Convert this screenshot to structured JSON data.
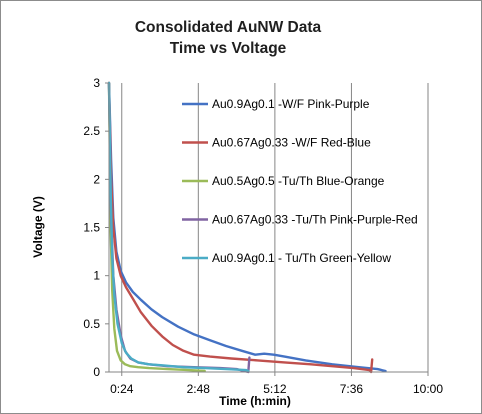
{
  "chart_data": {
    "type": "line",
    "title": "Consolidated AuNW Data",
    "subtitle": "Time vs Voltage",
    "xlabel": "Time (h:min)",
    "ylabel": "Voltage (V)",
    "x_unit": "minutes",
    "xlim": [
      0,
      600
    ],
    "ylim": [
      0,
      3
    ],
    "x_ticks": [
      {
        "value": 24,
        "label": "0:24"
      },
      {
        "value": 168,
        "label": "2:48"
      },
      {
        "value": 312,
        "label": "5:12"
      },
      {
        "value": 456,
        "label": "7:36"
      },
      {
        "value": 600,
        "label": "10:00"
      }
    ],
    "y_ticks": [
      {
        "value": 0,
        "label": "0"
      },
      {
        "value": 0.5,
        "label": "0.5"
      },
      {
        "value": 1,
        "label": "1"
      },
      {
        "value": 1.5,
        "label": "1.5"
      },
      {
        "value": 2,
        "label": "2"
      },
      {
        "value": 2.5,
        "label": "2.5"
      },
      {
        "value": 3,
        "label": "3"
      }
    ],
    "grid": {
      "vertical": true,
      "horizontal": false
    },
    "legend_position": "top-right",
    "series": [
      {
        "name": "Au0.9Ag0.1 -W/F Pink-Purple",
        "color": "#4472c4",
        "x": [
          0,
          4,
          8,
          14,
          22,
          32,
          45,
          60,
          80,
          100,
          130,
          160,
          190,
          220,
          250,
          275,
          292,
          310,
          330,
          370,
          420,
          470,
          505,
          520
        ],
        "y": [
          3.0,
          2.2,
          1.6,
          1.25,
          1.05,
          0.93,
          0.83,
          0.75,
          0.65,
          0.57,
          0.47,
          0.39,
          0.33,
          0.27,
          0.22,
          0.18,
          0.19,
          0.18,
          0.16,
          0.12,
          0.08,
          0.05,
          0.03,
          0.01
        ]
      },
      {
        "name": "Au0.67Ag0.33 -W/F Red-Blue",
        "color": "#c0504d",
        "x": [
          0,
          4,
          8,
          14,
          22,
          32,
          45,
          60,
          80,
          100,
          120,
          140,
          160,
          190,
          230,
          280,
          330,
          380,
          420,
          460,
          490,
          493,
          494,
          495
        ],
        "y": [
          3.0,
          2.0,
          1.5,
          1.18,
          1.0,
          0.88,
          0.76,
          0.62,
          0.48,
          0.37,
          0.28,
          0.22,
          0.18,
          0.16,
          0.14,
          0.12,
          0.1,
          0.08,
          0.06,
          0.04,
          0.02,
          0.0,
          0.06,
          0.13
        ]
      },
      {
        "name": "Au0.5Ag0.5 -Tu/Th Blue-Orange",
        "color": "#9bbb59",
        "x": [
          0,
          3,
          6,
          10,
          15,
          22,
          30,
          40,
          55,
          75,
          110,
          150,
          180
        ],
        "y": [
          3.0,
          1.5,
          0.85,
          0.45,
          0.22,
          0.12,
          0.08,
          0.06,
          0.05,
          0.04,
          0.03,
          0.02,
          0.01
        ]
      },
      {
        "name": "Au0.67Ag0.33 -Tu/Th Pink-Purple-Red",
        "color": "#8064a2",
        "x": [
          0,
          4,
          8,
          14,
          22,
          30,
          40,
          55,
          75,
          110,
          160,
          210,
          240,
          262,
          263,
          264
        ],
        "y": [
          3.0,
          1.6,
          1.0,
          0.65,
          0.38,
          0.22,
          0.14,
          0.1,
          0.08,
          0.06,
          0.05,
          0.04,
          0.03,
          0.0,
          0.07,
          0.15
        ]
      },
      {
        "name": "Au0.9Ag0.1 - Tu/Th Green-Yellow",
        "color": "#4bacc6",
        "x": [
          0,
          3,
          6,
          10,
          16,
          24,
          32,
          42,
          55,
          75,
          100,
          140,
          180,
          220,
          258,
          262
        ],
        "y": [
          3.0,
          1.9,
          1.2,
          0.8,
          0.5,
          0.3,
          0.2,
          0.14,
          0.1,
          0.08,
          0.07,
          0.05,
          0.04,
          0.03,
          0.02,
          0.01
        ]
      }
    ]
  }
}
